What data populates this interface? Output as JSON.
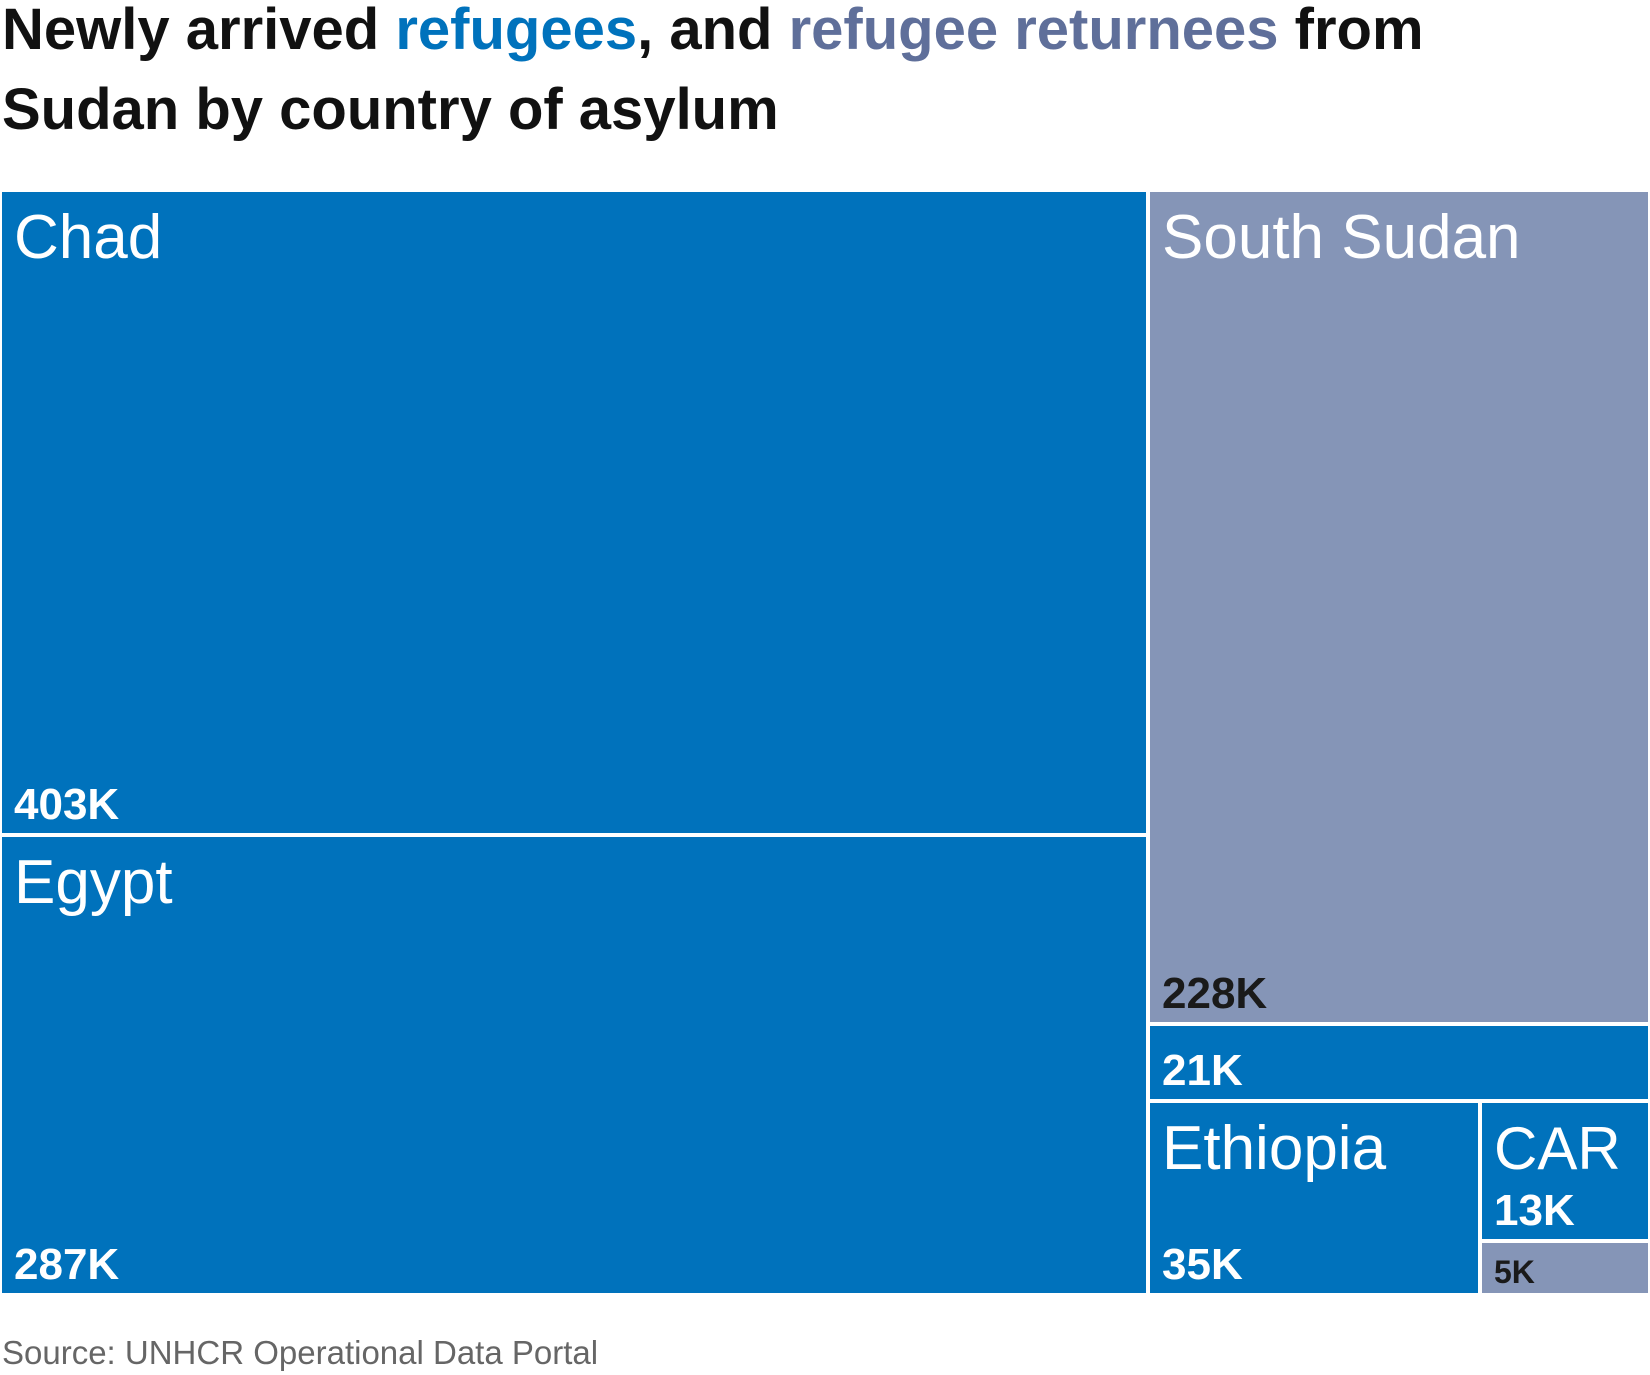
{
  "title": {
    "part1": "Newly arrived ",
    "highlight1": "refugees",
    "part2": ", and ",
    "highlight2": "refugee returnees",
    "part3": " from Sudan by country of asylum"
  },
  "colors": {
    "refugees": "#0072bc",
    "returnees": "#8595b7",
    "title_returnees": "#5f6f9a",
    "dark_label": "#1a1a1a",
    "background": "#ffffff"
  },
  "chart_data": {
    "type": "treemap",
    "series": [
      {
        "name": "refugees",
        "color": "#0072bc"
      },
      {
        "name": "refugee returnees",
        "color": "#8595b7"
      }
    ],
    "items": [
      {
        "country": "Chad",
        "type": "refugees",
        "value": 403,
        "value_label": "403K"
      },
      {
        "country": "Egypt",
        "type": "refugees",
        "value": 287,
        "value_label": "287K"
      },
      {
        "country": "South Sudan",
        "type": "refugee returnees",
        "value": 228,
        "value_label": "228K"
      },
      {
        "country": "",
        "type": "refugees",
        "value": 21,
        "value_label": "21K"
      },
      {
        "country": "Ethiopia",
        "type": "refugees",
        "value": 35,
        "value_label": "35K"
      },
      {
        "country": "CAR",
        "type": "refugees",
        "value": 13,
        "value_label": "13K"
      },
      {
        "country": "",
        "type": "refugee returnees",
        "value": 5,
        "value_label": "5K"
      }
    ]
  },
  "source": "Source: UNHCR Operational Data Portal"
}
